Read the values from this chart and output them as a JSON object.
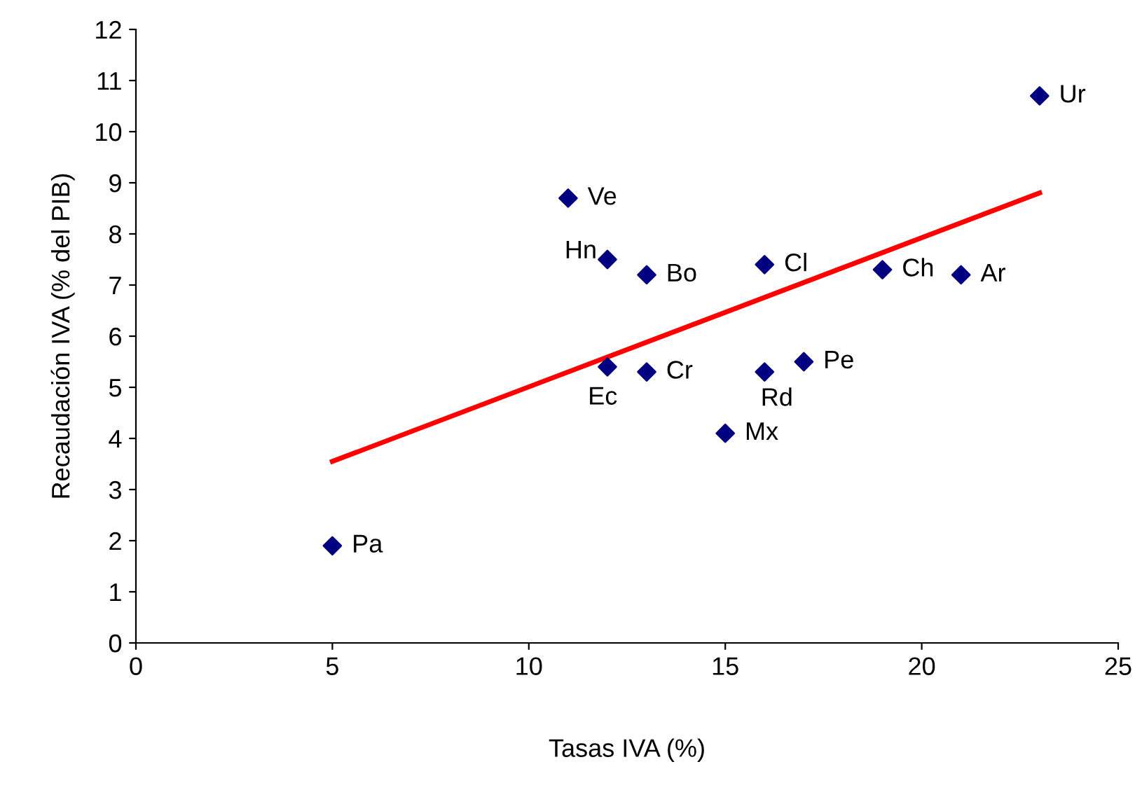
{
  "chart_data": {
    "type": "scatter",
    "xlabel": "Tasas IVA (%)",
    "ylabel": "Recaudación IVA (% del PIB)",
    "series": [
      {
        "color": "#000080",
        "marker": "diamond",
        "x": [
          5,
          11,
          12,
          13,
          16,
          19,
          21,
          23,
          12,
          13,
          16,
          17,
          15
        ],
        "values": [
          1.9,
          8.7,
          7.5,
          7.2,
          7.4,
          7.3,
          7.2,
          10.7,
          5.4,
          5.3,
          5.3,
          5.5,
          4.1
        ]
      },
      {
        "type": "line",
        "color": "#ff0000",
        "marker": "none",
        "line_style": "solid",
        "x": [
          5,
          23
        ],
        "values": [
          3.55,
          8.8
        ]
      }
    ],
    "annotations": [
      {
        "text": "Pa",
        "x": 5,
        "y": 1.9
      },
      {
        "text": "Ve",
        "x": 11,
        "y": 8.7
      },
      {
        "text": "Hn",
        "x": 12,
        "y": 7.5
      },
      {
        "text": "Bo",
        "x": 13,
        "y": 7.2
      },
      {
        "text": "Cl",
        "x": 16,
        "y": 7.4
      },
      {
        "text": "Ch",
        "x": 19,
        "y": 7.3
      },
      {
        "text": "Ar",
        "x": 21,
        "y": 7.2
      },
      {
        "text": "Ur",
        "x": 23,
        "y": 10.7
      },
      {
        "text": "Ec",
        "x": 12,
        "y": 5.4
      },
      {
        "text": "Cr",
        "x": 13,
        "y": 5.3
      },
      {
        "text": "Rd",
        "x": 16,
        "y": 5.3
      },
      {
        "text": "Pe",
        "x": 17,
        "y": 5.5
      },
      {
        "text": "Mx",
        "x": 15,
        "y": 4.1
      }
    ],
    "xlim": [
      0,
      25
    ],
    "xticks": [
      0,
      5,
      10,
      15,
      20,
      25
    ],
    "ylim": [
      0,
      12
    ],
    "yticks": [
      0,
      1,
      2,
      3,
      4,
      5,
      6,
      7,
      8,
      9,
      10,
      11,
      12
    ],
    "grid": false,
    "legend": false
  }
}
